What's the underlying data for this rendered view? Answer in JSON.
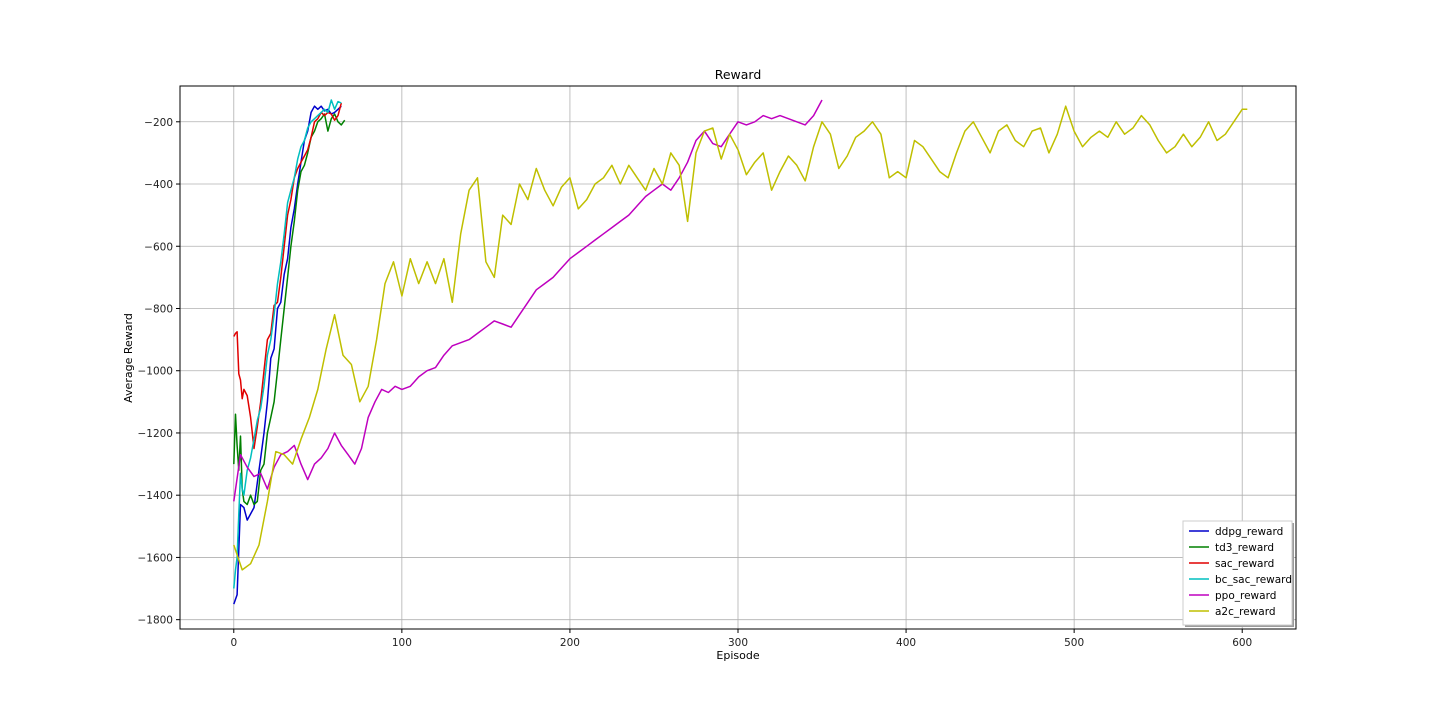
{
  "chart_data": {
    "type": "line",
    "title": "Reward",
    "xlabel": "Episode",
    "ylabel": "Average Reward",
    "xlim": [
      -32,
      632
    ],
    "ylim": [
      -1830,
      -85
    ],
    "xticks": [
      0,
      100,
      200,
      300,
      400,
      500,
      600
    ],
    "yticks": [
      -1800,
      -1600,
      -1400,
      -1200,
      -1000,
      -800,
      -600,
      -400,
      -200
    ],
    "grid": true,
    "legend_position": "lower right",
    "series": [
      {
        "name": "ddpg_reward",
        "color": "#0000cc",
        "x": [
          0,
          2,
          4,
          6,
          8,
          10,
          12,
          14,
          16,
          18,
          20,
          22,
          24,
          26,
          28,
          30,
          32,
          34,
          36,
          38,
          40,
          42,
          44,
          46,
          48,
          50,
          52,
          54,
          56,
          58,
          60,
          62,
          64
        ],
        "y": [
          -1750,
          -1720,
          -1430,
          -1440,
          -1480,
          -1460,
          -1440,
          -1360,
          -1280,
          -1200,
          -1100,
          -960,
          -930,
          -800,
          -780,
          -690,
          -640,
          -540,
          -480,
          -400,
          -330,
          -260,
          -230,
          -170,
          -150,
          -160,
          -150,
          -165,
          -160,
          -175,
          -170,
          -160,
          -150
        ]
      },
      {
        "name": "td3_reward",
        "color": "#008000",
        "x": [
          0,
          1,
          2,
          3,
          4,
          5,
          6,
          8,
          10,
          12,
          14,
          16,
          18,
          20,
          22,
          24,
          26,
          28,
          30,
          32,
          34,
          36,
          38,
          40,
          42,
          44,
          46,
          48,
          50,
          52,
          54,
          56,
          58,
          60,
          62,
          64,
          66
        ],
        "y": [
          -1300,
          -1140,
          -1240,
          -1320,
          -1210,
          -1380,
          -1420,
          -1430,
          -1400,
          -1430,
          -1420,
          -1320,
          -1300,
          -1200,
          -1150,
          -1100,
          -1000,
          -900,
          -800,
          -700,
          -600,
          -520,
          -420,
          -360,
          -340,
          -300,
          -250,
          -230,
          -200,
          -190,
          -175,
          -230,
          -190,
          -175,
          -200,
          -210,
          -195
        ]
      },
      {
        "name": "sac_reward",
        "color": "#e00000",
        "x": [
          0,
          1,
          2,
          3,
          4,
          5,
          6,
          8,
          10,
          12,
          14,
          16,
          18,
          20,
          22,
          24,
          26,
          28,
          30,
          32,
          34,
          36,
          38,
          40,
          42,
          44,
          46,
          48,
          50,
          52,
          54,
          56,
          58,
          60,
          62,
          64
        ],
        "y": [
          -890,
          -880,
          -875,
          -1010,
          -1030,
          -1090,
          -1060,
          -1080,
          -1150,
          -1250,
          -1180,
          -1100,
          -1000,
          -900,
          -880,
          -790,
          -780,
          -700,
          -600,
          -500,
          -450,
          -380,
          -350,
          -330,
          -310,
          -290,
          -250,
          -200,
          -190,
          -170,
          -180,
          -170,
          -175,
          -195,
          -180,
          -140
        ]
      },
      {
        "name": "bc_sac_reward",
        "color": "#00bfbf",
        "x": [
          0,
          1,
          2,
          3,
          4,
          5,
          6,
          8,
          10,
          12,
          14,
          16,
          18,
          20,
          22,
          24,
          26,
          28,
          30,
          32,
          34,
          36,
          38,
          40,
          42,
          44,
          46,
          48,
          50,
          52,
          54,
          56,
          58,
          60,
          62,
          64
        ],
        "y": [
          -1700,
          -1640,
          -1600,
          -1460,
          -1330,
          -1380,
          -1400,
          -1320,
          -1280,
          -1220,
          -1160,
          -1120,
          -1050,
          -950,
          -900,
          -820,
          -720,
          -650,
          -560,
          -460,
          -420,
          -380,
          -320,
          -280,
          -260,
          -220,
          -200,
          -190,
          -180,
          -170,
          -160,
          -170,
          -130,
          -160,
          -135,
          -140
        ]
      },
      {
        "name": "ppo_reward",
        "color": "#bf00bf",
        "x": [
          0,
          4,
          8,
          12,
          16,
          20,
          24,
          28,
          32,
          36,
          40,
          44,
          48,
          52,
          56,
          60,
          64,
          68,
          72,
          76,
          80,
          84,
          88,
          92,
          96,
          100,
          105,
          110,
          115,
          120,
          125,
          130,
          135,
          140,
          145,
          150,
          155,
          160,
          165,
          170,
          175,
          180,
          185,
          190,
          195,
          200,
          205,
          210,
          215,
          220,
          225,
          230,
          235,
          240,
          245,
          250,
          255,
          260,
          265,
          270,
          275,
          280,
          285,
          290,
          295,
          300,
          305,
          310,
          315,
          320,
          325,
          330,
          335,
          340,
          345,
          350
        ],
        "y": [
          -1420,
          -1270,
          -1310,
          -1340,
          -1330,
          -1380,
          -1310,
          -1270,
          -1260,
          -1240,
          -1300,
          -1350,
          -1300,
          -1280,
          -1250,
          -1200,
          -1240,
          -1270,
          -1300,
          -1250,
          -1150,
          -1100,
          -1060,
          -1070,
          -1050,
          -1060,
          -1050,
          -1020,
          -1000,
          -990,
          -950,
          -920,
          -910,
          -900,
          -880,
          -860,
          -840,
          -850,
          -860,
          -820,
          -780,
          -740,
          -720,
          -700,
          -670,
          -640,
          -620,
          -600,
          -580,
          -560,
          -540,
          -520,
          -500,
          -470,
          -440,
          -420,
          -400,
          -420,
          -380,
          -330,
          -260,
          -230,
          -270,
          -280,
          -240,
          -200,
          -210,
          -200,
          -180,
          -190,
          -180,
          -190,
          -200,
          -210,
          -180,
          -130
        ]
      },
      {
        "name": "a2c_reward",
        "color": "#bfbf00",
        "x": [
          0,
          5,
          10,
          15,
          20,
          25,
          30,
          35,
          40,
          45,
          50,
          55,
          60,
          65,
          70,
          75,
          80,
          85,
          90,
          95,
          100,
          105,
          110,
          115,
          120,
          125,
          130,
          135,
          140,
          145,
          150,
          155,
          160,
          165,
          170,
          175,
          180,
          185,
          190,
          195,
          200,
          205,
          210,
          215,
          220,
          225,
          230,
          235,
          240,
          245,
          250,
          255,
          260,
          265,
          270,
          275,
          280,
          285,
          290,
          295,
          300,
          305,
          310,
          315,
          320,
          325,
          330,
          335,
          340,
          345,
          350,
          355,
          360,
          365,
          370,
          375,
          380,
          385,
          390,
          395,
          400,
          405,
          410,
          415,
          420,
          425,
          430,
          435,
          440,
          445,
          450,
          455,
          460,
          465,
          470,
          475,
          480,
          485,
          490,
          495,
          500,
          505,
          510,
          515,
          520,
          525,
          530,
          535,
          540,
          545,
          550,
          555,
          560,
          565,
          570,
          575,
          580,
          585,
          590,
          595,
          600,
          603
        ],
        "y": [
          -1560,
          -1640,
          -1620,
          -1560,
          -1420,
          -1260,
          -1270,
          -1300,
          -1220,
          -1150,
          -1060,
          -930,
          -820,
          -950,
          -980,
          -1100,
          -1050,
          -900,
          -720,
          -650,
          -760,
          -640,
          -720,
          -650,
          -720,
          -640,
          -780,
          -560,
          -420,
          -380,
          -650,
          -700,
          -500,
          -530,
          -400,
          -450,
          -350,
          -420,
          -470,
          -410,
          -380,
          -480,
          -450,
          -400,
          -380,
          -340,
          -400,
          -340,
          -380,
          -420,
          -350,
          -400,
          -300,
          -340,
          -520,
          -300,
          -230,
          -220,
          -320,
          -240,
          -290,
          -370,
          -330,
          -300,
          -420,
          -360,
          -310,
          -340,
          -390,
          -280,
          -200,
          -240,
          -350,
          -310,
          -250,
          -230,
          -200,
          -240,
          -380,
          -360,
          -380,
          -260,
          -280,
          -320,
          -360,
          -380,
          -300,
          -230,
          -200,
          -250,
          -300,
          -230,
          -210,
          -260,
          -280,
          -230,
          -220,
          -300,
          -240,
          -150,
          -230,
          -280,
          -250,
          -230,
          -250,
          -200,
          -240,
          -220,
          -180,
          -210,
          -260,
          -300,
          -280,
          -240,
          -280,
          -250,
          -200,
          -260,
          -240,
          -200,
          -160,
          -160
        ]
      }
    ]
  }
}
